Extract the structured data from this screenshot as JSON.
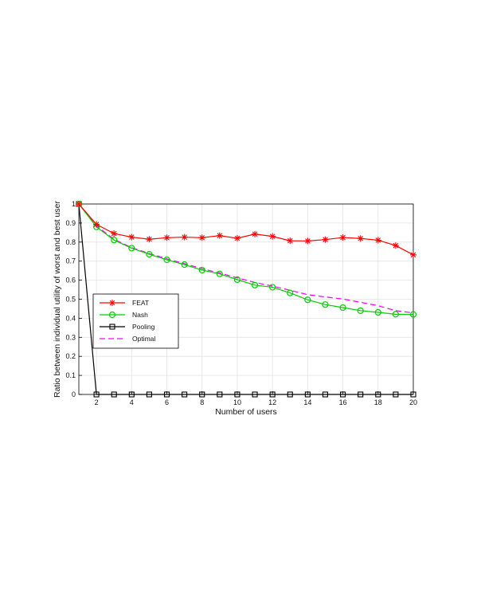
{
  "chart_data": {
    "type": "line",
    "title": "",
    "xlabel": "Number of users",
    "ylabel": "Ratio between individual utility of worst and best user",
    "xlim": [
      1,
      20
    ],
    "ylim": [
      0,
      1
    ],
    "xticks": [
      "2",
      "4",
      "6",
      "8",
      "10",
      "12",
      "14",
      "16",
      "18",
      "20"
    ],
    "yticks": [
      "0",
      "0.1",
      "0.2",
      "0.3",
      "0.4",
      "0.5",
      "0.6",
      "0.7",
      "0.8",
      "0.9",
      "1"
    ],
    "grid": true,
    "legend_position": "lower-left",
    "x": [
      1,
      2,
      3,
      4,
      5,
      6,
      7,
      8,
      9,
      10,
      11,
      12,
      13,
      14,
      15,
      16,
      17,
      18,
      19,
      20
    ],
    "series": [
      {
        "name": "FEAT",
        "color": "#ff0000",
        "line": "solid",
        "marker": "asterisk",
        "values": [
          1.0,
          0.893,
          0.845,
          0.826,
          0.815,
          0.823,
          0.826,
          0.823,
          0.834,
          0.82,
          0.842,
          0.83,
          0.807,
          0.806,
          0.813,
          0.824,
          0.819,
          0.81,
          0.782,
          0.733
        ]
      },
      {
        "name": "Nash",
        "color": "#00cc00",
        "line": "solid",
        "marker": "circle",
        "values": [
          1.0,
          0.88,
          0.811,
          0.768,
          0.736,
          0.707,
          0.682,
          0.653,
          0.633,
          0.603,
          0.574,
          0.563,
          0.533,
          0.497,
          0.472,
          0.456,
          0.44,
          0.431,
          0.421,
          0.42
        ]
      },
      {
        "name": "Pooling",
        "color": "#000000",
        "line": "solid",
        "marker": "square",
        "values": [
          1.0,
          0,
          0,
          0,
          0,
          0,
          0,
          0,
          0,
          0,
          0,
          0,
          0,
          0,
          0,
          0,
          0,
          0,
          0,
          0
        ]
      },
      {
        "name": "Optimal",
        "color": "#ff00ff",
        "line": "dashed",
        "marker": "none",
        "values": [
          1.0,
          0.885,
          0.815,
          0.771,
          0.74,
          0.712,
          0.687,
          0.66,
          0.638,
          0.612,
          0.588,
          0.569,
          0.547,
          0.524,
          0.512,
          0.501,
          0.484,
          0.466,
          0.44,
          0.428
        ]
      }
    ]
  }
}
